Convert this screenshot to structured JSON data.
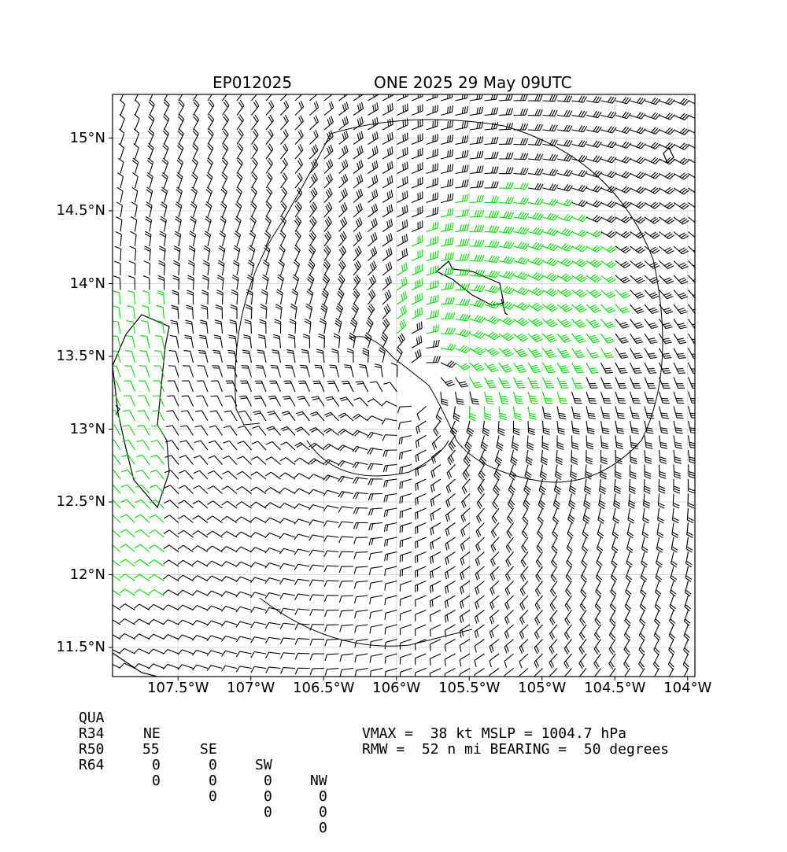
{
  "header": {
    "storm_id": "EP012025",
    "storm_title": "ONE 2025 29 May 09UTC"
  },
  "map": {
    "lat_labels": [
      "15°N",
      "14.5°N",
      "14°N",
      "13.5°N",
      "13°N",
      "12.5°N",
      "12°N",
      "11.5°N"
    ],
    "lon_labels": [
      "107.5°W",
      "107°W",
      "106.5°W",
      "106°W",
      "105.5°W",
      "105°W",
      "104.5°W",
      "104°W"
    ],
    "lat_range": [
      11.3,
      15.3
    ],
    "lon_range": [
      -107.95,
      -103.95
    ],
    "center": {
      "lat": 13.3,
      "lon": -105.85
    },
    "colors": {
      "below_34": "#000000",
      "r34": "#00e000",
      "r50": "#f5b700",
      "coast": "#000000",
      "grid": "#d9d9d9"
    }
  },
  "wind_radii_table": {
    "header": [
      "QUA",
      "NE",
      "SE",
      "SW",
      "NW"
    ],
    "rows": [
      {
        "label": "R34",
        "values": [
          "55",
          "0",
          "0",
          "0"
        ]
      },
      {
        "label": "R50",
        "values": [
          "0",
          "0",
          "0",
          "0"
        ]
      },
      {
        "label": "R64",
        "values": [
          "0",
          "0",
          "0",
          "0"
        ]
      }
    ]
  },
  "storm_info": {
    "line1": "VMAX =  38 kt MSLP = 1004.7 hPa",
    "line2": "RMW =  52 n mi BEARING =  50 degrees"
  },
  "values": {
    "vmax_kt": 38,
    "mslp_hpa": 1004.7,
    "rmw_nmi": 52,
    "bearing_deg": 50
  }
}
